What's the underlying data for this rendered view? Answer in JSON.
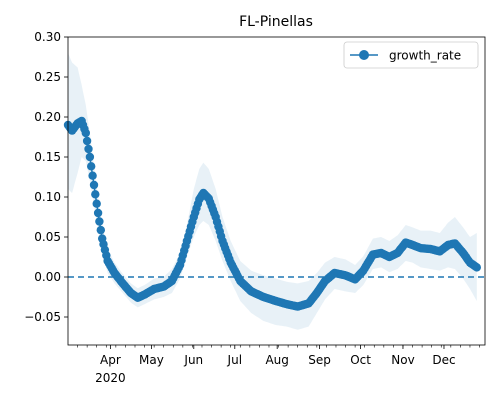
{
  "chart_data": {
    "type": "line",
    "title": "FL-Pinellas",
    "xlabel": "",
    "ylabel": "",
    "xlim": [
      "2020-03-01",
      "2020-12-31"
    ],
    "ylim": [
      -0.085,
      0.3
    ],
    "y_ticks": [
      -0.05,
      0.0,
      0.05,
      0.1,
      0.15,
      0.2,
      0.25,
      0.3
    ],
    "y_tick_labels": [
      "−0.05",
      "0.00",
      "0.05",
      "0.10",
      "0.15",
      "0.20",
      "0.25",
      "0.30"
    ],
    "x_ticks": [
      {
        "date": "2020-04-01",
        "label": "Apr",
        "sublabel": "2020"
      },
      {
        "date": "2020-05-01",
        "label": "May"
      },
      {
        "date": "2020-06-01",
        "label": "Jun"
      },
      {
        "date": "2020-07-01",
        "label": "Jul"
      },
      {
        "date": "2020-08-01",
        "label": "Aug"
      },
      {
        "date": "2020-09-01",
        "label": "Sep"
      },
      {
        "date": "2020-10-01",
        "label": "Oct"
      },
      {
        "date": "2020-11-01",
        "label": "Nov"
      },
      {
        "date": "2020-12-01",
        "label": "Dec"
      }
    ],
    "legend": {
      "position": "top-right"
    },
    "grid": false,
    "reference_line": {
      "y": 0.0,
      "style": "dashed",
      "color": "#1f77b4"
    },
    "series": [
      {
        "name": "growth_rate",
        "color": "#1f77b4",
        "band_color": "#1f77b4",
        "key_points": [
          {
            "x": "2020-03-01",
            "y": 0.19,
            "lo": 0.11,
            "hi": 0.28
          },
          {
            "x": "2020-03-04",
            "y": 0.183,
            "lo": 0.105,
            "hi": 0.268
          },
          {
            "x": "2020-03-08",
            "y": 0.192,
            "lo": 0.13,
            "hi": 0.262
          },
          {
            "x": "2020-03-11",
            "y": 0.195,
            "lo": 0.15,
            "hi": 0.24
          },
          {
            "x": "2020-03-14",
            "y": 0.18,
            "lo": 0.145,
            "hi": 0.215
          },
          {
            "x": "2020-03-17",
            "y": 0.15,
            "lo": 0.12,
            "hi": 0.18
          },
          {
            "x": "2020-03-20",
            "y": 0.115,
            "lo": 0.09,
            "hi": 0.14
          },
          {
            "x": "2020-03-23",
            "y": 0.08,
            "lo": 0.06,
            "hi": 0.1
          },
          {
            "x": "2020-03-26",
            "y": 0.048,
            "lo": 0.03,
            "hi": 0.066
          },
          {
            "x": "2020-03-30",
            "y": 0.02,
            "lo": 0.005,
            "hi": 0.035
          },
          {
            "x": "2020-04-04",
            "y": 0.005,
            "lo": -0.008,
            "hi": 0.018
          },
          {
            "x": "2020-04-10",
            "y": -0.008,
            "lo": -0.02,
            "hi": 0.004
          },
          {
            "x": "2020-04-16",
            "y": -0.02,
            "lo": -0.032,
            "hi": -0.008
          },
          {
            "x": "2020-04-21",
            "y": -0.026,
            "lo": -0.038,
            "hi": -0.014
          },
          {
            "x": "2020-04-26",
            "y": -0.022,
            "lo": -0.034,
            "hi": -0.01
          },
          {
            "x": "2020-05-03",
            "y": -0.015,
            "lo": -0.028,
            "hi": -0.002
          },
          {
            "x": "2020-05-10",
            "y": -0.012,
            "lo": -0.025,
            "hi": 0.0
          },
          {
            "x": "2020-05-16",
            "y": -0.005,
            "lo": -0.02,
            "hi": 0.01
          },
          {
            "x": "2020-05-22",
            "y": 0.015,
            "lo": -0.002,
            "hi": 0.03
          },
          {
            "x": "2020-05-27",
            "y": 0.045,
            "lo": 0.025,
            "hi": 0.065
          },
          {
            "x": "2020-06-01",
            "y": 0.075,
            "lo": 0.05,
            "hi": 0.11
          },
          {
            "x": "2020-06-05",
            "y": 0.097,
            "lo": 0.065,
            "hi": 0.135
          },
          {
            "x": "2020-06-08",
            "y": 0.105,
            "lo": 0.07,
            "hi": 0.143
          },
          {
            "x": "2020-06-12",
            "y": 0.098,
            "lo": 0.065,
            "hi": 0.135
          },
          {
            "x": "2020-06-17",
            "y": 0.075,
            "lo": 0.045,
            "hi": 0.11
          },
          {
            "x": "2020-06-22",
            "y": 0.045,
            "lo": 0.02,
            "hi": 0.075
          },
          {
            "x": "2020-06-28",
            "y": 0.018,
            "lo": -0.005,
            "hi": 0.045
          },
          {
            "x": "2020-07-05",
            "y": -0.005,
            "lo": -0.03,
            "hi": 0.02
          },
          {
            "x": "2020-07-13",
            "y": -0.018,
            "lo": -0.045,
            "hi": 0.008
          },
          {
            "x": "2020-07-22",
            "y": -0.025,
            "lo": -0.055,
            "hi": 0.002
          },
          {
            "x": "2020-07-31",
            "y": -0.03,
            "lo": -0.06,
            "hi": -0.002
          },
          {
            "x": "2020-08-08",
            "y": -0.034,
            "lo": -0.062,
            "hi": -0.006
          },
          {
            "x": "2020-08-16",
            "y": -0.037,
            "lo": -0.066,
            "hi": -0.008
          },
          {
            "x": "2020-08-24",
            "y": -0.033,
            "lo": -0.062,
            "hi": -0.005
          },
          {
            "x": "2020-08-30",
            "y": -0.02,
            "lo": -0.045,
            "hi": 0.005
          },
          {
            "x": "2020-09-05",
            "y": -0.005,
            "lo": -0.028,
            "hi": 0.018
          },
          {
            "x": "2020-09-12",
            "y": 0.005,
            "lo": -0.015,
            "hi": 0.025
          },
          {
            "x": "2020-09-20",
            "y": 0.002,
            "lo": -0.018,
            "hi": 0.022
          },
          {
            "x": "2020-09-27",
            "y": -0.003,
            "lo": -0.02,
            "hi": 0.015
          },
          {
            "x": "2020-10-03",
            "y": 0.008,
            "lo": -0.01,
            "hi": 0.026
          },
          {
            "x": "2020-10-10",
            "y": 0.028,
            "lo": 0.01,
            "hi": 0.048
          },
          {
            "x": "2020-10-16",
            "y": 0.03,
            "lo": 0.012,
            "hi": 0.05
          },
          {
            "x": "2020-10-22",
            "y": 0.025,
            "lo": 0.006,
            "hi": 0.045
          },
          {
            "x": "2020-10-28",
            "y": 0.03,
            "lo": 0.01,
            "hi": 0.052
          },
          {
            "x": "2020-11-03",
            "y": 0.043,
            "lo": 0.02,
            "hi": 0.065
          },
          {
            "x": "2020-11-08",
            "y": 0.04,
            "lo": 0.018,
            "hi": 0.062
          },
          {
            "x": "2020-11-14",
            "y": 0.036,
            "lo": 0.012,
            "hi": 0.058
          },
          {
            "x": "2020-11-21",
            "y": 0.035,
            "lo": 0.01,
            "hi": 0.058
          },
          {
            "x": "2020-11-28",
            "y": 0.032,
            "lo": 0.008,
            "hi": 0.055
          },
          {
            "x": "2020-12-04",
            "y": 0.04,
            "lo": 0.012,
            "hi": 0.068
          },
          {
            "x": "2020-12-09",
            "y": 0.042,
            "lo": 0.01,
            "hi": 0.075
          },
          {
            "x": "2020-12-15",
            "y": 0.03,
            "lo": -0.002,
            "hi": 0.062
          },
          {
            "x": "2020-12-20",
            "y": 0.018,
            "lo": -0.015,
            "hi": 0.05
          },
          {
            "x": "2020-12-25",
            "y": 0.012,
            "lo": -0.03,
            "hi": 0.055
          }
        ]
      }
    ]
  }
}
